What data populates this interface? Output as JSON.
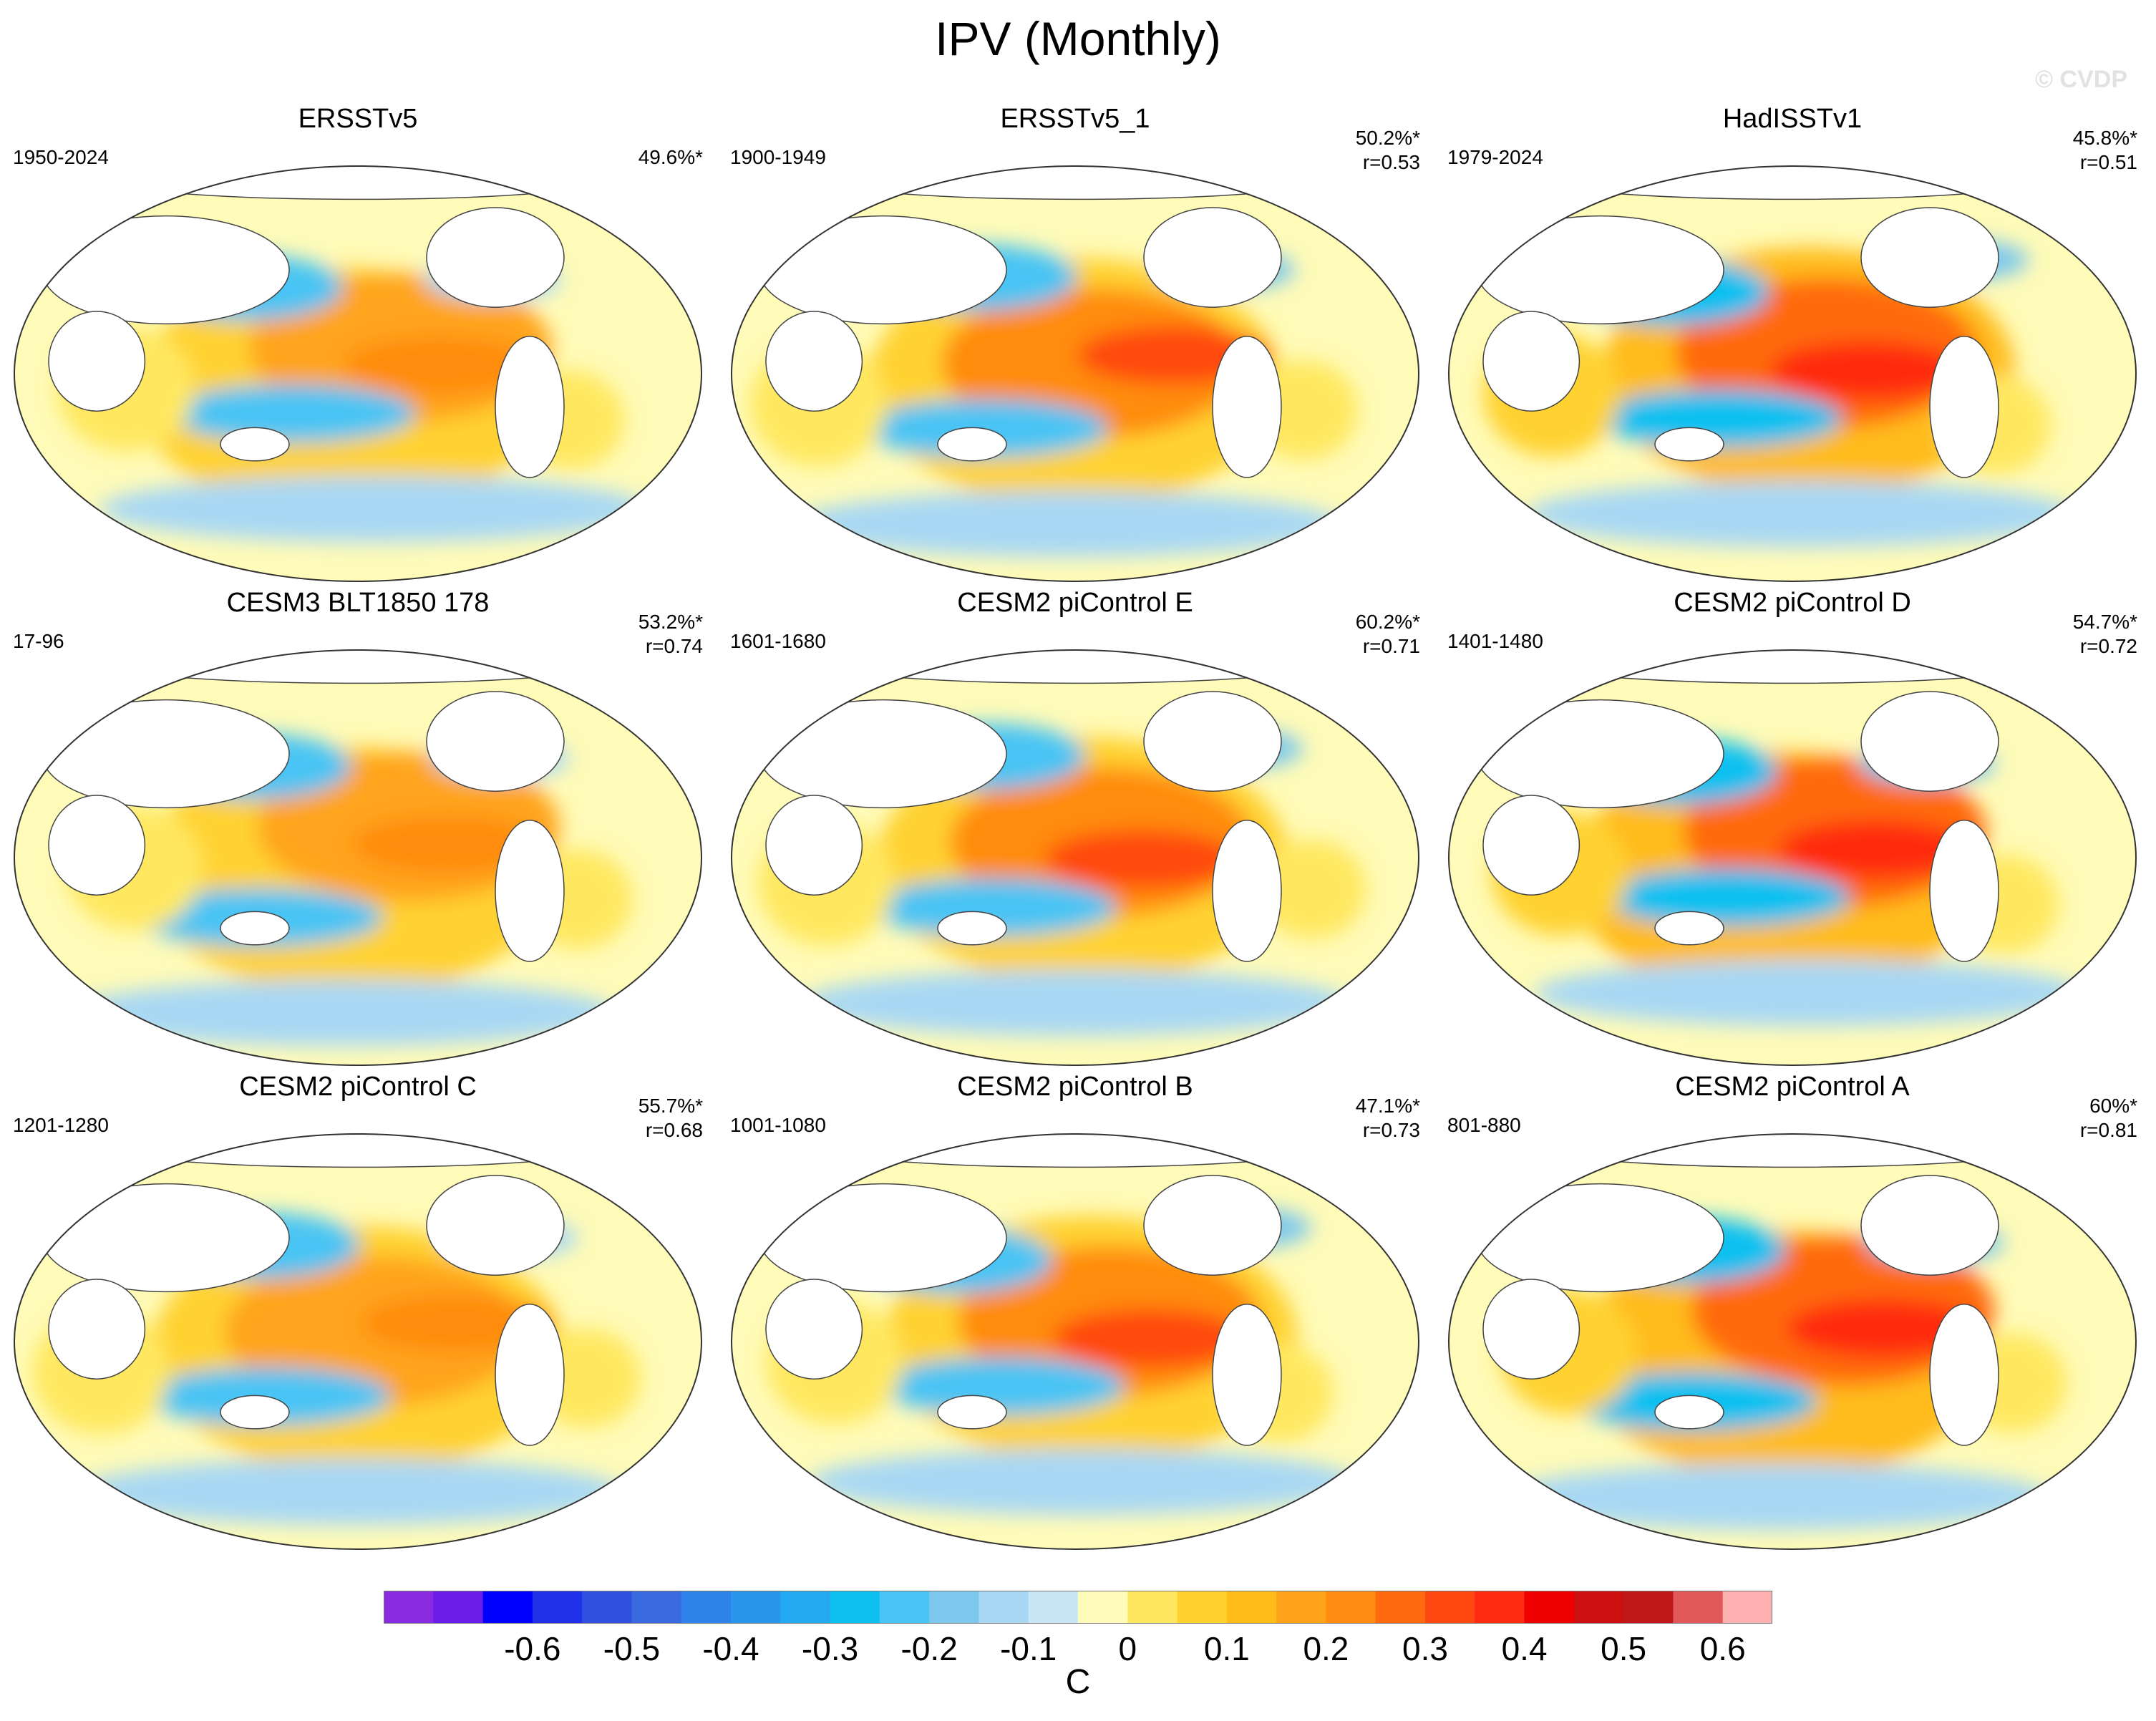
{
  "title": "IPV (Monthly)",
  "watermark": "© CVDP",
  "chart_data": {
    "type": "heatmap",
    "description_type": "global SST regression maps (Robinson projection), 3x3 panels",
    "units": "C",
    "colorbar": {
      "ticks": [
        "-0.6",
        "-0.5",
        "-0.4",
        "-0.3",
        "-0.2",
        "-0.1",
        "0",
        "0.1",
        "0.2",
        "0.3",
        "0.4",
        "0.5",
        "0.6"
      ],
      "levels": [
        -0.65,
        -0.6,
        -0.55,
        -0.5,
        -0.45,
        -0.4,
        -0.35,
        -0.3,
        -0.25,
        -0.2,
        -0.15,
        -0.1,
        -0.05,
        0,
        0.05,
        0.1,
        0.15,
        0.2,
        0.25,
        0.3,
        0.35,
        0.4,
        0.45,
        0.5,
        0.55,
        0.6,
        0.65
      ],
      "colors": [
        "#8a2be2",
        "#6a1ee8",
        "#0000ff",
        "#2030e8",
        "#3050e0",
        "#3a6ae0",
        "#2f83e8",
        "#2a95ec",
        "#24aaf0",
        "#10c0f0",
        "#4ac4f4",
        "#7cc8ee",
        "#a8d8f4",
        "#c8e6f6",
        "#fffbb8",
        "#ffe860",
        "#ffd230",
        "#ffbc1a",
        "#ffa41a",
        "#ff8c10",
        "#ff6a10",
        "#ff4810",
        "#ff2a10",
        "#ee0000",
        "#cc1010",
        "#c01818",
        "#e05858",
        "#ffb0b0"
      ]
    },
    "panels": [
      {
        "name": "ERSSTv5",
        "years": "1950-2024",
        "pct": "49.6%*",
        "r": ""
      },
      {
        "name": "ERSSTv5_1",
        "years": "1900-1949",
        "pct": "50.2%*",
        "r": "r=0.53"
      },
      {
        "name": "HadISSTv1",
        "years": "1979-2024",
        "pct": "45.8%*",
        "r": "r=0.51"
      },
      {
        "name": "CESM3 BLT1850 178",
        "years": "17-96",
        "pct": "53.2%*",
        "r": "r=0.74"
      },
      {
        "name": "CESM2 piControl E",
        "years": "1601-1680",
        "pct": "60.2%*",
        "r": "r=0.71"
      },
      {
        "name": "CESM2 piControl D",
        "years": "1401-1480",
        "pct": "54.7%*",
        "r": "r=0.72"
      },
      {
        "name": "CESM2 piControl C",
        "years": "1201-1280",
        "pct": "55.7%*",
        "r": "r=0.68"
      },
      {
        "name": "CESM2 piControl B",
        "years": "1001-1080",
        "pct": "47.1%*",
        "r": "r=0.73"
      },
      {
        "name": "CESM2 piControl A",
        "years": "801-880",
        "pct": "60%*",
        "r": "r=0.81"
      }
    ]
  }
}
